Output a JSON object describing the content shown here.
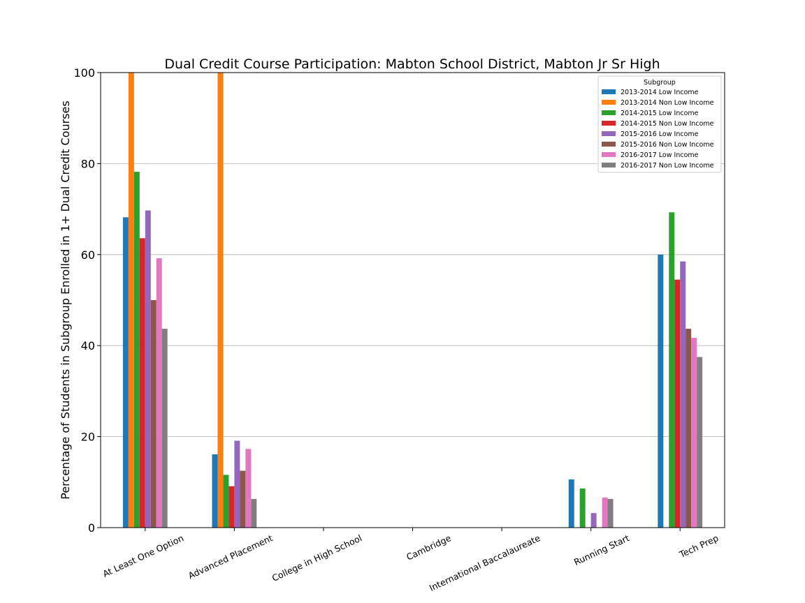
{
  "chart_data": {
    "type": "bar",
    "title": "Dual Credit Course Participation: Mabton School District, Mabton Jr  Sr  High",
    "xlabel": "",
    "ylabel": "Percentage of Students in Subgroup Enrolled in 1+ Dual Credit Courses",
    "ylim": [
      0,
      100
    ],
    "yticks": [
      "0",
      "20",
      "40",
      "60",
      "80",
      "100"
    ],
    "grid": "horizontal",
    "legend_title": "Subgroup",
    "legend_position": "top-right",
    "categories": [
      "At Least One Option",
      "Advanced Placement",
      "College in High School",
      "Cambridge",
      "International Baccalaureate",
      "Running Start",
      "Tech Prep"
    ],
    "series": [
      {
        "name": "2013-2014 Low Income",
        "color": "#1f77b4",
        "values": [
          68.2,
          16.1,
          0,
          0,
          0,
          10.6,
          60.0
        ]
      },
      {
        "name": "2013-2014 Non Low Income",
        "color": "#ff7f0e",
        "values": [
          100,
          100,
          0,
          0,
          0,
          0,
          0
        ]
      },
      {
        "name": "2014-2015 Low Income",
        "color": "#2ca02c",
        "values": [
          78.2,
          11.6,
          0,
          0,
          0,
          8.6,
          69.3
        ]
      },
      {
        "name": "2014-2015 Non Low Income",
        "color": "#d62728",
        "values": [
          63.6,
          9.1,
          0,
          0,
          0,
          0,
          54.5
        ]
      },
      {
        "name": "2015-2016 Low Income",
        "color": "#9467bd",
        "values": [
          69.7,
          19.1,
          0,
          0,
          0,
          3.2,
          58.5
        ]
      },
      {
        "name": "2015-2016 Non Low Income",
        "color": "#8c564b",
        "values": [
          50.0,
          12.5,
          0,
          0,
          0,
          0,
          43.7
        ]
      },
      {
        "name": "2016-2017 Low Income",
        "color": "#e377c2",
        "values": [
          59.2,
          17.3,
          0,
          0,
          0,
          6.6,
          41.7
        ]
      },
      {
        "name": "2016-2017 Non Low Income",
        "color": "#7f7f7f",
        "values": [
          43.7,
          6.3,
          0,
          0,
          0,
          6.3,
          37.5
        ]
      }
    ]
  }
}
